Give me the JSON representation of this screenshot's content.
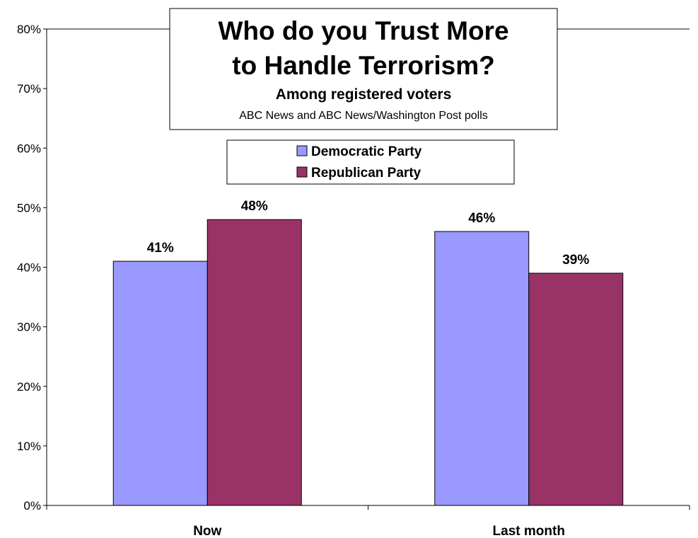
{
  "chart_data": {
    "type": "bar",
    "title": "Who do you Trust More to Handle Terrorism?",
    "title_lines": [
      "Who do you Trust More",
      "to Handle Terrorism?"
    ],
    "subtitle": "Among registered voters",
    "source": "ABC News and ABC News/Washington Post polls",
    "categories": [
      "Now",
      "Last month"
    ],
    "series": [
      {
        "name": "Democratic Party",
        "values": [
          41,
          46
        ],
        "color": "#9999ff"
      },
      {
        "name": "Republican Party",
        "values": [
          48,
          39
        ],
        "color": "#993366"
      }
    ],
    "value_suffix": "%",
    "ylim": [
      0,
      80
    ],
    "ytick_step": 10,
    "yticks": [
      "0%",
      "10%",
      "20%",
      "30%",
      "40%",
      "50%",
      "60%",
      "70%",
      "80%"
    ],
    "xlabel": "",
    "ylabel": "",
    "grid": "top-line-only",
    "legend_position": "top-center"
  }
}
